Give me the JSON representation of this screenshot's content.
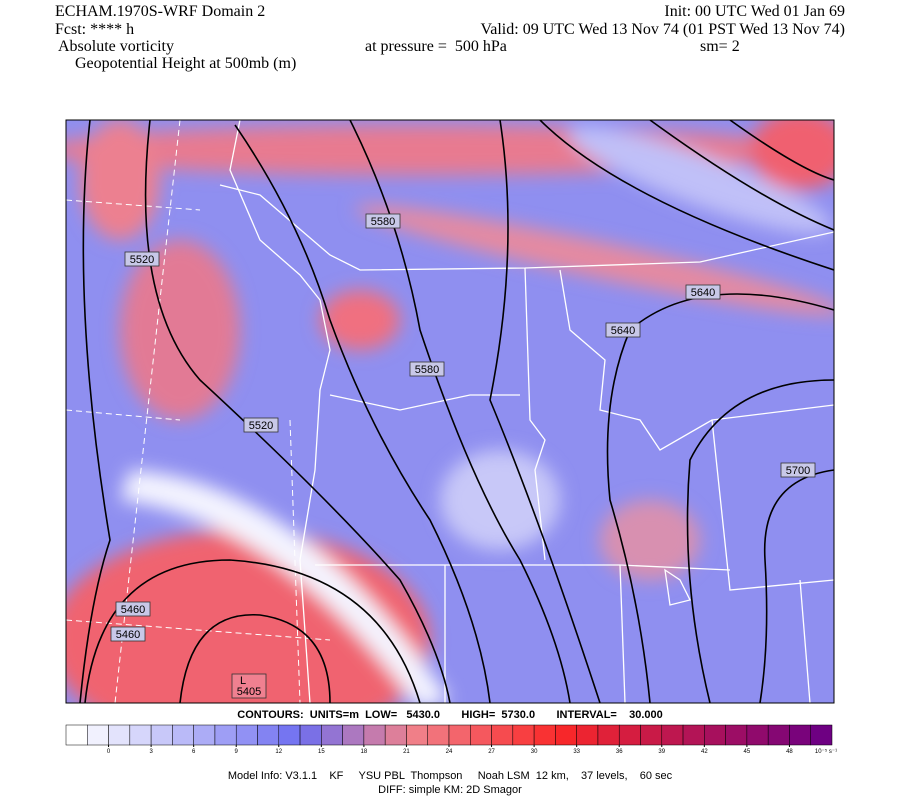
{
  "header": {
    "title": "ECHAM.1970S-WRF Domain 2",
    "init": "Init: 00 UTC Wed 01 Jan 69",
    "forecast": "Fcst: **** h",
    "valid": "Valid: 09 UTC Wed 13 Nov 74 (01 PST Wed 13 Nov 74)",
    "field": "Absolute vorticity",
    "pressure": "at pressure =  500 hPa",
    "smoothing": "sm= 2",
    "contour_field": "Geopotential Height at 500mb (m)"
  },
  "map": {
    "contour_labels": [
      5580,
      5520,
      5640,
      5640,
      5580,
      5520,
      5700,
      5460,
      5460
    ],
    "low_marker": "L",
    "low_value": 5405
  },
  "contour_info": "CONTOURS:  UNITS=m  LOW=   5430.0       HIGH=  5730.0       INTERVAL=    30.000",
  "colorbar": {
    "ticks": [
      0,
      3,
      6,
      9,
      12,
      15,
      18,
      21,
      24,
      27,
      30,
      33,
      36,
      39,
      42,
      45,
      48
    ],
    "units": "10⁻⁵ s⁻¹"
  },
  "footer": {
    "model_info": "Model Info: V3.1.1    KF     YSU PBL  Thompson     Noah LSM  12 km,    37 levels,    60 sec",
    "diff": "DIFF: simple KM: 2D Smagor"
  }
}
